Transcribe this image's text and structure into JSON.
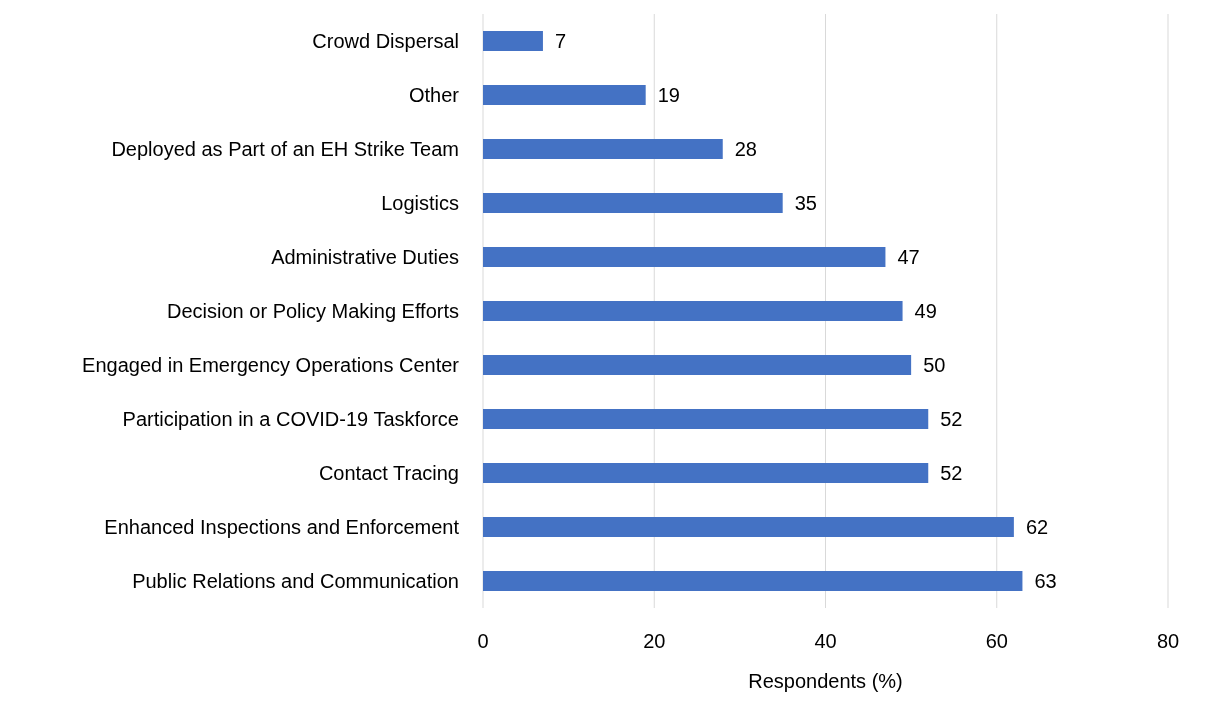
{
  "chart_data": {
    "type": "bar",
    "orientation": "horizontal",
    "xlabel": "Respondents (%)",
    "categories": [
      "Crowd Dispersal",
      "Other",
      "Deployed as Part of an EH Strike Team",
      "Logistics",
      "Administrative Duties",
      "Decision or Policy Making Efforts",
      "Engaged in Emergency Operations Center",
      "Participation in a COVID-19 Taskforce",
      "Contact Tracing",
      "Enhanced Inspections and Enforcement",
      "Public Relations and Communication"
    ],
    "values": [
      7,
      19,
      28,
      35,
      47,
      49,
      50,
      52,
      52,
      62,
      63
    ],
    "color": "#4472c4",
    "xlim": [
      0,
      80
    ],
    "xticks": [
      0,
      20,
      40,
      60,
      80
    ],
    "grid": "x",
    "data_labels": true,
    "legend": false
  }
}
